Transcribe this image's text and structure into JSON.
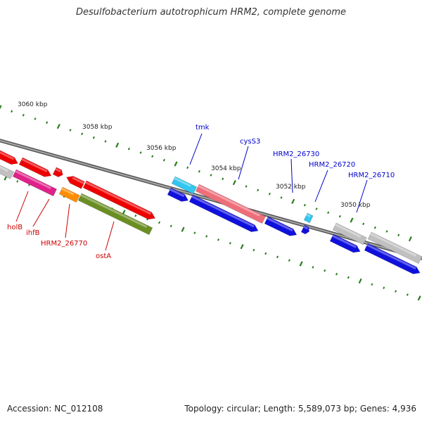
{
  "title": "Desulfobacterium autotrophicum HRM2, complete genome",
  "footer": {
    "accession": "Accession: NC_012108",
    "summary": "Topology: circular; Length: 5,589,073 bp; Genes: 4,936"
  },
  "colors": {
    "tick": "#2a7d1e",
    "backbone": "#808080",
    "label_red": "#cc0000",
    "label_blue": "#0000cc",
    "gene_red": "#ee0000",
    "gene_pink": "#ee6e7a",
    "gene_magenta": "#e0218a",
    "gene_orange": "#ff8c00",
    "gene_olive": "#6b8e23",
    "gene_cyan": "#33c6ee",
    "gene_blue": "#1010dd",
    "gene_grey": "#c0c0c0"
  },
  "scale_labels": [
    "3060 kbp",
    "3058 kbp",
    "3056 kbp",
    "3054 kbp",
    "3052 kbp",
    "3050 kbp"
  ],
  "gene_labels": [
    {
      "id": "holB",
      "text": "holB",
      "color": "red"
    },
    {
      "id": "ihfB",
      "text": "ihfB",
      "color": "red"
    },
    {
      "id": "hrm2-26770",
      "text": "HRM2_26770",
      "color": "red"
    },
    {
      "id": "ostA",
      "text": "ostA",
      "color": "red"
    },
    {
      "id": "tmk",
      "text": "tmk",
      "color": "blue"
    },
    {
      "id": "cysS3",
      "text": "cysS3",
      "color": "blue"
    },
    {
      "id": "hrm2-26730",
      "text": "HRM2_26730",
      "color": "blue"
    },
    {
      "id": "hrm2-26720",
      "text": "HRM2_26720",
      "color": "blue"
    },
    {
      "id": "hrm2-26710",
      "text": "HRM2_26710",
      "color": "blue"
    }
  ]
}
